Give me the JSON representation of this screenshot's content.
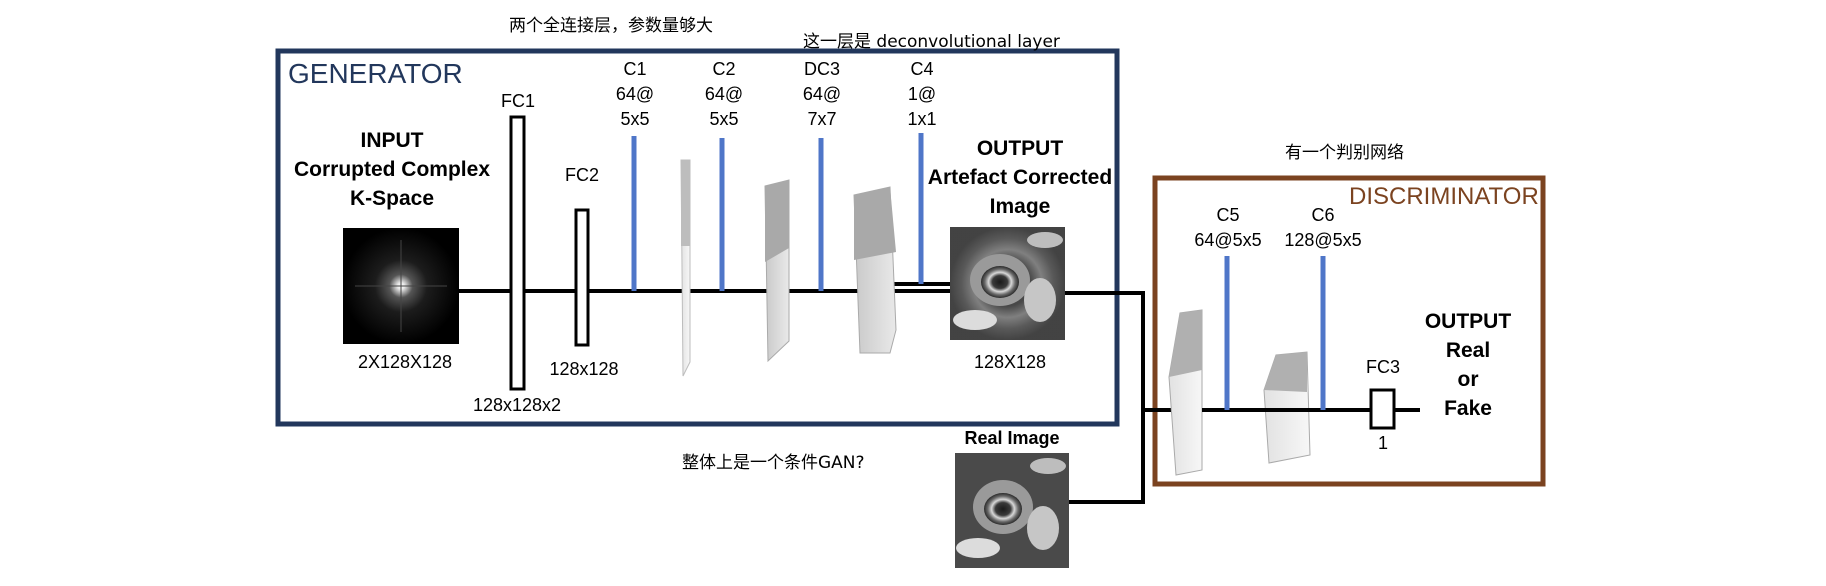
{
  "annotations": {
    "fc_note": "两个全连接层，参数量够大",
    "deconv_note": "这一层是 deconvolutional layer",
    "disc_note": "有一个判别网络",
    "gan_note": "整体上是一个条件GAN?"
  },
  "generator": {
    "title": "GENERATOR",
    "input_title": [
      "INPUT",
      "Corrupted Complex",
      "K-Space"
    ],
    "input_dims": "2X128X128",
    "fc1": {
      "label": "FC1",
      "dims": "128x128x2"
    },
    "fc2": {
      "label": "FC2",
      "dims": "128x128"
    },
    "convs": [
      {
        "name": "C1",
        "filters": "64@",
        "kernel": "5x5"
      },
      {
        "name": "C2",
        "filters": "64@",
        "kernel": "5x5"
      },
      {
        "name": "DC3",
        "filters": "64@",
        "kernel": "7x7"
      },
      {
        "name": "C4",
        "filters": "1@",
        "kernel": "1x1"
      }
    ],
    "output_title": [
      "OUTPUT",
      "Artefact Corrected",
      "Image"
    ],
    "output_dims": "128X128"
  },
  "real_image": {
    "title": "Real Image"
  },
  "discriminator": {
    "title": "DISCRIMINATOR",
    "convs": [
      {
        "name": "C5",
        "spec": "64@5x5"
      },
      {
        "name": "C6",
        "spec": "128@5x5"
      }
    ],
    "fc3": {
      "label": "FC3",
      "dims": "1"
    },
    "output": [
      "OUTPUT",
      "Real",
      "or",
      "Fake"
    ]
  },
  "colors": {
    "generator_border": "#22375c",
    "discriminator_border": "#7b4320",
    "conv_bar": "#4f76c8"
  }
}
